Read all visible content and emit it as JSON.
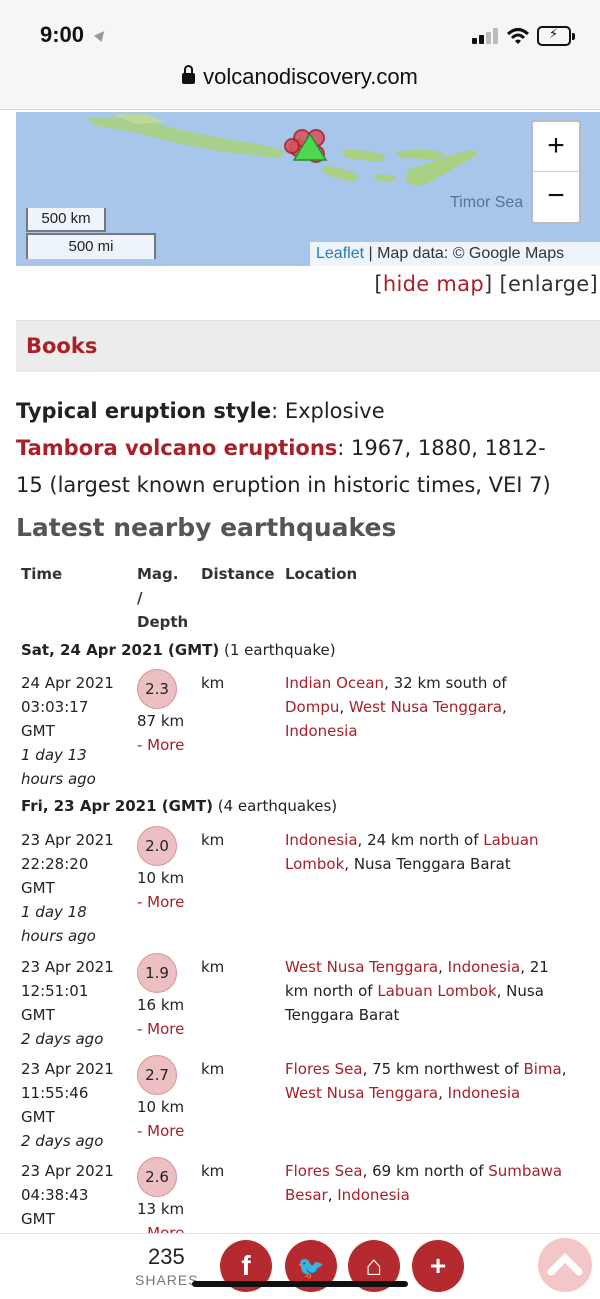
{
  "status": {
    "time": "9:00"
  },
  "browser": {
    "url": "volcanodiscovery.com"
  },
  "map": {
    "scale_km": "500 km",
    "scale_mi": "500 mi",
    "sea_label": "Timor Sea",
    "zoom_in": "+",
    "zoom_out": "−",
    "attribution_link": "Leaflet",
    "attribution_text": " | Map data: © Google Maps",
    "land_color": "#8fbf6a",
    "water_color": "#a7c6ea"
  },
  "map_links": {
    "open1": "[",
    "hide": "hide map",
    "mid": "] [enlarge]"
  },
  "books": {
    "label": "Books"
  },
  "info": {
    "style_label": "Typical eruption style",
    "style_value": ": Explosive",
    "eruptions_label": "Tambora volcano eruptions",
    "eruptions_line1": ": 1967, 1880, 1812-",
    "eruptions_line2": "15 (largest known eruption in historic times, VEI 7)"
  },
  "section_title": "Latest nearby earthquakes",
  "table_headers": {
    "time": "Time",
    "mag1": "Mag.",
    "mag2": "/",
    "mag3": "Depth",
    "distance": "Distance",
    "location": "Location"
  },
  "days": [
    {
      "date": "Sat, 24 Apr 2021 (GMT)",
      "count": " (1 earthquake)"
    },
    {
      "date": "Fri, 23 Apr 2021 (GMT)",
      "count": " (4 earthquakes)"
    }
  ],
  "quakes": [
    {
      "date": "24 Apr 2021",
      "time": "03:03:17",
      "tz": "GMT",
      "ago1": "1 day 13",
      "ago2": "hours ago",
      "mag": "2.3",
      "depth": "87 km",
      "more": "- More",
      "km": "km",
      "loc": [
        [
          "Indian Ocean",
          ", 32 km south of"
        ],
        [
          "Dompu",
          ", ",
          "West Nusa Tenggara",
          ","
        ],
        [
          "Indonesia"
        ]
      ]
    },
    {
      "date": "23 Apr 2021",
      "time": "22:28:20",
      "tz": "GMT",
      "ago1": "1 day 18",
      "ago2": "hours ago",
      "mag": "2.0",
      "depth": "10 km",
      "more": "- More",
      "km": "km",
      "loc": [
        [
          "Indonesia",
          ", 24 km north of ",
          "Labuan"
        ],
        [
          "Lombok",
          ", Nusa Tenggara Barat"
        ]
      ]
    },
    {
      "date": "23 Apr 2021",
      "time": "12:51:01",
      "tz": "GMT",
      "ago1": "2 days ago",
      "ago2": "",
      "mag": "1.9",
      "depth": "16 km",
      "more": "- More",
      "km": "km",
      "loc": [
        [
          "West Nusa Tenggara",
          ", ",
          "Indonesia",
          ", 21"
        ],
        [
          "",
          "km north of ",
          "Labuan Lombok",
          ", Nusa"
        ],
        [
          "",
          "Tenggara Barat"
        ]
      ]
    },
    {
      "date": "23 Apr 2021",
      "time": "11:55:46",
      "tz": "GMT",
      "ago1": "2 days ago",
      "ago2": "",
      "mag": "2.7",
      "depth": "10 km",
      "more": "- More",
      "km": "km",
      "loc": [
        [
          "Flores Sea",
          ", 75 km northwest of ",
          "Bima",
          ","
        ],
        [
          "West Nusa Tenggara",
          ", ",
          "Indonesia"
        ]
      ]
    },
    {
      "date": "23 Apr 2021",
      "time": "04:38:43",
      "tz": "GMT",
      "ago1": "",
      "ago2": "",
      "mag": "2.6",
      "depth": "13 km",
      "more": "- More",
      "km": "km",
      "loc": [
        [
          "Flores Sea",
          ", 69 km north of ",
          "Sumbawa"
        ],
        [
          "Besar",
          ", ",
          "Indonesia"
        ]
      ]
    }
  ],
  "share": {
    "count": "235",
    "label": "SHARES",
    "buttons": [
      {
        "icon": "facebook-icon",
        "glyph": "f"
      },
      {
        "icon": "twitter-icon",
        "glyph": "🐦"
      },
      {
        "icon": "bookmark-icon",
        "glyph": "⌂"
      },
      {
        "icon": "plus-icon",
        "glyph": "+"
      }
    ],
    "accent": "#b52a2e"
  }
}
